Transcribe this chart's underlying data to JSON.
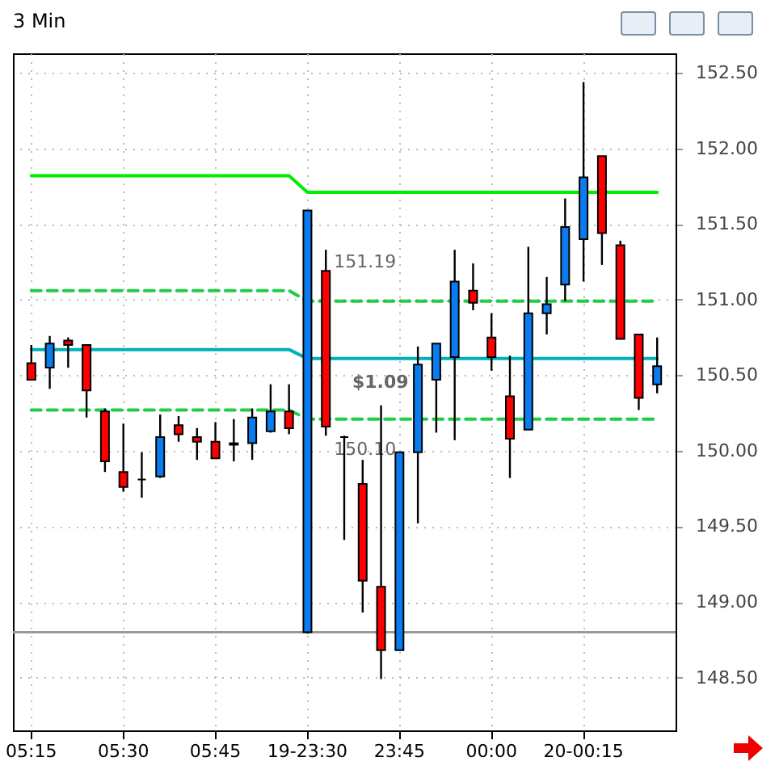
{
  "chart_data": {
    "type": "candlestick",
    "title": "3 Min",
    "categories": [
      "05:15",
      null,
      null,
      null,
      null,
      "05:30",
      null,
      null,
      null,
      null,
      "05:45",
      null,
      null,
      null,
      null,
      "19-23:30",
      null,
      null,
      null,
      null,
      "23:45",
      null,
      null,
      null,
      null,
      "00:00",
      null,
      null,
      null,
      null,
      "20-00:15",
      null,
      null,
      null,
      null
    ],
    "ohlc": [
      [
        150.58,
        150.7,
        150.47,
        150.47
      ],
      [
        150.55,
        150.76,
        150.41,
        150.71
      ],
      [
        150.73,
        150.75,
        150.55,
        150.7
      ],
      [
        150.7,
        150.7,
        150.22,
        150.4
      ],
      [
        150.26,
        150.28,
        149.86,
        149.93
      ],
      [
        149.86,
        150.18,
        149.73,
        149.76
      ],
      [
        149.81,
        149.99,
        149.69,
        149.81
      ],
      [
        149.83,
        150.24,
        149.82,
        150.09
      ],
      [
        150.17,
        150.23,
        150.06,
        150.11
      ],
      [
        150.09,
        150.15,
        149.94,
        150.06
      ],
      [
        150.06,
        150.19,
        149.95,
        149.95
      ],
      [
        150.04,
        150.21,
        149.93,
        150.05
      ],
      [
        150.05,
        150.28,
        149.94,
        150.22
      ],
      [
        150.13,
        150.44,
        150.12,
        150.26
      ],
      [
        150.26,
        150.44,
        150.11,
        150.15
      ],
      [
        148.8,
        151.59,
        148.79,
        151.59
      ],
      [
        151.19,
        151.33,
        150.1,
        150.16
      ],
      [
        150.09,
        150.1,
        149.41,
        150.09
      ],
      [
        149.78,
        149.94,
        148.93,
        149.14
      ],
      [
        149.1,
        150.3,
        148.49,
        148.68
      ],
      [
        148.68,
        149.99,
        148.68,
        149.99
      ],
      [
        149.99,
        150.69,
        149.52,
        150.57
      ],
      [
        150.47,
        150.71,
        150.12,
        150.71
      ],
      [
        150.62,
        151.33,
        150.07,
        151.12
      ],
      [
        151.06,
        151.24,
        150.93,
        150.98
      ],
      [
        150.75,
        150.91,
        150.53,
        150.62
      ],
      [
        150.36,
        150.63,
        149.82,
        150.08
      ],
      [
        150.14,
        151.35,
        150.14,
        150.91
      ],
      [
        150.91,
        151.15,
        150.77,
        150.97
      ],
      [
        151.1,
        151.67,
        150.99,
        151.48
      ],
      [
        151.4,
        152.44,
        151.12,
        151.81
      ],
      [
        151.95,
        151.95,
        151.23,
        151.44
      ],
      [
        151.36,
        151.39,
        150.74,
        150.74
      ],
      [
        150.77,
        150.77,
        150.27,
        150.35
      ],
      [
        150.44,
        150.75,
        150.38,
        150.56
      ]
    ],
    "colors": [
      "#ff0000",
      "#0a7cf0",
      "#ff0000",
      "#ff0000",
      "#ff0000",
      "#ff0000",
      "#000000",
      "#0a7cf0",
      "#ff0000",
      "#ff0000",
      "#ff0000",
      "#0a7cf0",
      "#0a7cf0",
      "#0a7cf0",
      "#ff0000",
      "#0a7cf0",
      "#ff0000",
      "#000000",
      "#ff0000",
      "#ff0000",
      "#0a7cf0",
      "#0a7cf0",
      "#0a7cf0",
      "#0a7cf0",
      "#ff0000",
      "#ff0000",
      "#ff0000",
      "#0a7cf0",
      "#0a7cf0",
      "#0a7cf0",
      "#0a7cf0",
      "#ff0000",
      "#ff0000",
      "#ff0000",
      "#0a7cf0"
    ],
    "series": [
      {
        "type": "line",
        "color": "#00ee00",
        "line_style": "solid",
        "values": [
          151.82,
          151.82,
          151.82,
          151.82,
          151.82,
          151.82,
          151.82,
          151.82,
          151.82,
          151.82,
          151.82,
          151.82,
          151.82,
          151.82,
          151.82,
          151.71,
          151.71,
          151.71,
          151.71,
          151.71,
          151.71,
          151.71,
          151.71,
          151.71,
          151.71,
          151.71,
          151.71,
          151.71,
          151.71,
          151.71,
          151.71,
          151.71,
          151.71,
          151.71,
          151.71
        ]
      },
      {
        "type": "line",
        "color": "#00b0b8",
        "line_style": "solid",
        "values": [
          150.67,
          150.67,
          150.67,
          150.67,
          150.67,
          150.67,
          150.67,
          150.67,
          150.67,
          150.67,
          150.67,
          150.67,
          150.67,
          150.67,
          150.67,
          150.61,
          150.61,
          150.61,
          150.61,
          150.61,
          150.61,
          150.61,
          150.61,
          150.61,
          150.61,
          150.61,
          150.61,
          150.61,
          150.61,
          150.61,
          150.61,
          150.61,
          150.61,
          150.61,
          150.61
        ]
      },
      {
        "type": "line",
        "color": "#22cc44",
        "line_style": "dashed",
        "values": [
          151.06,
          151.06,
          151.06,
          151.06,
          151.06,
          151.06,
          151.06,
          151.06,
          151.06,
          151.06,
          151.06,
          151.06,
          151.06,
          151.06,
          151.06,
          150.99,
          150.99,
          150.99,
          150.99,
          150.99,
          150.99,
          150.99,
          150.99,
          150.99,
          150.99,
          150.99,
          150.99,
          150.99,
          150.99,
          150.99,
          150.99,
          150.99,
          150.99,
          150.99,
          150.99
        ]
      },
      {
        "type": "line",
        "color": "#22cc44",
        "line_style": "dashed",
        "values": [
          150.27,
          150.27,
          150.27,
          150.27,
          150.27,
          150.27,
          150.27,
          150.27,
          150.27,
          150.27,
          150.27,
          150.27,
          150.27,
          150.27,
          150.27,
          150.21,
          150.21,
          150.21,
          150.21,
          150.21,
          150.21,
          150.21,
          150.21,
          150.21,
          150.21,
          150.21,
          150.21,
          150.21,
          150.21,
          150.21,
          150.21,
          150.21,
          150.21,
          150.21,
          150.21
        ]
      }
    ],
    "ref_lines": [
      {
        "axis": "y",
        "value": 148.8,
        "color": "#999999"
      }
    ],
    "annotations": [
      "151.19",
      "150.10",
      "$1.09"
    ],
    "ylim": [
      148.15,
      152.63
    ],
    "yticks": [
      {
        "value": 148.5,
        "label": "148.50"
      },
      {
        "value": 149,
        "label": "149.00"
      },
      {
        "value": 149.5,
        "label": "149.50"
      },
      {
        "value": 150,
        "label": "150.00"
      },
      {
        "value": 150.5,
        "label": "150.50"
      },
      {
        "value": 151,
        "label": "151.00"
      },
      {
        "value": 151.5,
        "label": "151.50"
      },
      {
        "value": 152,
        "label": "152.00"
      },
      {
        "value": 152.5,
        "label": "152.50"
      }
    ],
    "grid": true
  }
}
